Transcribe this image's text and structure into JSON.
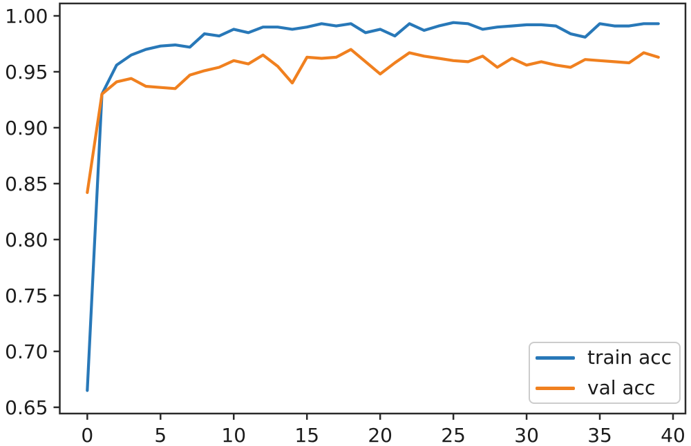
{
  "chart_data": {
    "type": "line",
    "title": "",
    "xlabel": "",
    "ylabel": "",
    "grid": false,
    "x": [
      0,
      1,
      2,
      3,
      4,
      5,
      6,
      7,
      8,
      9,
      10,
      11,
      12,
      13,
      14,
      15,
      16,
      17,
      18,
      19,
      20,
      21,
      22,
      23,
      24,
      25,
      26,
      27,
      28,
      29,
      30,
      31,
      32,
      33,
      34,
      35,
      36,
      37,
      38,
      39
    ],
    "series": [
      {
        "name": "train acc",
        "color": "#2878b8",
        "values": [
          0.665,
          0.93,
          0.956,
          0.965,
          0.97,
          0.973,
          0.974,
          0.972,
          0.984,
          0.982,
          0.988,
          0.985,
          0.99,
          0.99,
          0.988,
          0.99,
          0.993,
          0.991,
          0.993,
          0.985,
          0.988,
          0.982,
          0.993,
          0.987,
          0.991,
          0.994,
          0.993,
          0.988,
          0.99,
          0.991,
          0.992,
          0.992,
          0.991,
          0.984,
          0.981,
          0.993,
          0.991,
          0.991,
          0.993,
          0.993
        ]
      },
      {
        "name": "val acc",
        "color": "#f0801f",
        "values": [
          0.842,
          0.93,
          0.941,
          0.944,
          0.937,
          0.936,
          0.935,
          0.947,
          0.951,
          0.954,
          0.96,
          0.957,
          0.965,
          0.955,
          0.94,
          0.963,
          0.962,
          0.963,
          0.97,
          0.959,
          0.948,
          0.958,
          0.967,
          0.964,
          0.962,
          0.96,
          0.959,
          0.964,
          0.954,
          0.962,
          0.956,
          0.959,
          0.956,
          0.954,
          0.961,
          0.96,
          0.959,
          0.958,
          0.967,
          0.963
        ]
      }
    ],
    "xlim": [
      -1.88,
      40.85
    ],
    "ylim": [
      0.6444,
      1.0111
    ],
    "xticks": {
      "values": [
        0,
        5,
        10,
        15,
        20,
        25,
        30,
        35,
        40
      ],
      "labels": [
        "0",
        "5",
        "10",
        "15",
        "20",
        "25",
        "30",
        "35",
        "40"
      ]
    },
    "yticks": {
      "values": [
        0.65,
        0.7,
        0.75,
        0.8,
        0.85,
        0.9,
        0.95,
        1.0
      ],
      "labels": [
        "0.65",
        "0.70",
        "0.75",
        "0.80",
        "0.85",
        "0.90",
        "0.95",
        "1.00"
      ]
    },
    "legend": {
      "position": "lower right",
      "entries": [
        "train acc",
        "val acc"
      ]
    },
    "spine_color": "#2a2a2a",
    "tick_label_color": "#1c1c1c"
  }
}
